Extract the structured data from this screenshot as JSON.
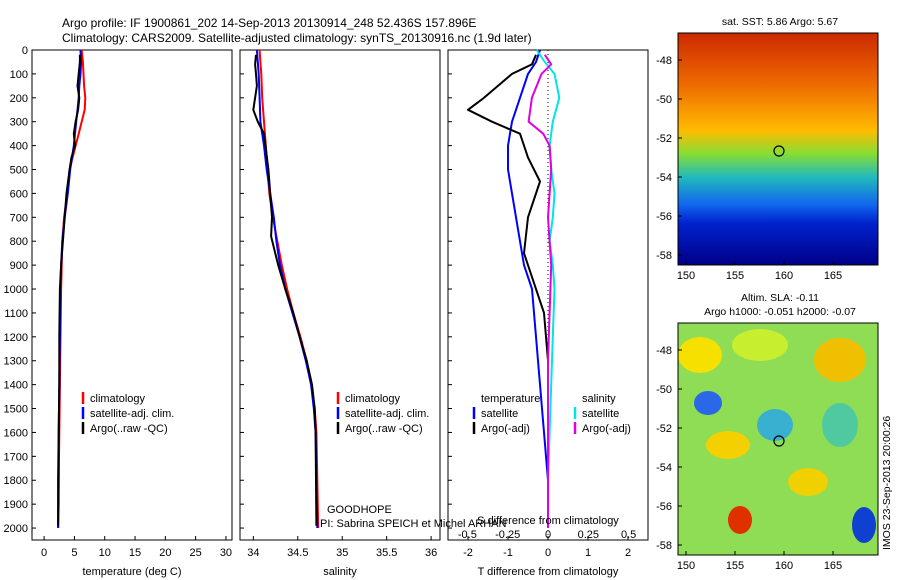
{
  "header": {
    "line1": "Argo profile: IF 1900861_202 14-Sep-2013 20130914_248 52.436S 157.896E",
    "line2": "Climatology: CARS2009. Satellite-adjusted climatology: synTS_20130916.nc (1.9d later)"
  },
  "colors": {
    "climatology": "#ff0000",
    "satellite_adj": "#0000ff",
    "argo": "#000000",
    "salinity_satellite": "#00e5e5",
    "salinity_argo": "#e000e0"
  },
  "depth_ticks": [
    "0",
    "100",
    "200",
    "300",
    "400",
    "500",
    "600",
    "700",
    "800",
    "900",
    "1000",
    "1100",
    "1200",
    "1300",
    "1400",
    "1500",
    "1600",
    "1700",
    "1800",
    "1900",
    "2000"
  ],
  "legend_profile": [
    "climatology",
    "satellite-adj. clim.",
    "Argo(..raw -QC)"
  ],
  "panel_annotation": {
    "line1": "GOODHOPE",
    "line2": "PI: Sabrina SPEICH et Michel ARHAN"
  },
  "diff_legend": {
    "temp_title": "temperature",
    "temp_items": [
      "satellite",
      "Argo(-adj)"
    ],
    "sal_title": "salinity",
    "sal_items": [
      "satellite",
      "Argo(-adj)"
    ]
  },
  "diff_axes": {
    "s_label": "S difference from climatology",
    "s_ticks": [
      "-0.5",
      "-0.25",
      "0",
      "0.25",
      "0.5"
    ],
    "t_label": "T difference from climatology",
    "t_ticks": [
      "-2",
      "-1",
      "0",
      "1",
      "2"
    ]
  },
  "maps": {
    "sst_title": "sat. SST: 5.86 Argo: 5.67",
    "sla_title1": "Altim. SLA: -0.11",
    "sla_title2": "Argo h1000: -0.051 h2000: -0.07",
    "lat_ticks": [
      "-48",
      "-50",
      "-52",
      "-54",
      "-56",
      "-58"
    ],
    "lon_ticks": [
      "150",
      "155",
      "160",
      "165"
    ],
    "credit": "IMOS 23-Sep-2013 20:00:26"
  },
  "chart_data": [
    {
      "type": "line",
      "name": "temperature profile",
      "xlabel": "temperature (deg C)",
      "ylabel": "",
      "xlim": [
        -2,
        31
      ],
      "ylim": [
        2050,
        0
      ],
      "xticks": [
        "0",
        "5",
        "10",
        "15",
        "20",
        "25",
        "30"
      ],
      "series": [
        {
          "name": "climatology",
          "color": "#ff0000",
          "x": [
            6.2,
            6.4,
            6.5,
            6.6,
            6.8,
            6.7,
            6.2,
            5.7,
            5.2,
            4.7,
            4.2,
            3.8,
            3.3,
            3.0,
            2.9,
            2.8,
            2.7,
            2.6,
            2.5,
            2.4,
            2.4,
            2.3
          ],
          "y": [
            0,
            50,
            100,
            150,
            200,
            250,
            300,
            350,
            400,
            450,
            500,
            600,
            700,
            800,
            900,
            1000,
            1200,
            1400,
            1600,
            1800,
            1900,
            2000
          ]
        },
        {
          "name": "satellite-adj. clim.",
          "color": "#0000ff",
          "x": [
            6.0,
            6.1,
            6.0,
            5.8,
            5.7,
            5.5,
            5.3,
            5.1,
            4.9,
            4.6,
            4.3,
            3.9,
            3.4,
            3.0,
            2.8,
            2.7,
            2.6,
            2.5,
            2.4,
            2.4,
            2.3
          ],
          "y": [
            0,
            50,
            100,
            150,
            200,
            250,
            300,
            350,
            400,
            450,
            500,
            600,
            700,
            800,
            900,
            1000,
            1200,
            1400,
            1600,
            1800,
            2000
          ]
        },
        {
          "name": "Argo(..raw -QC)",
          "color": "#000000",
          "x": [
            5.9,
            5.9,
            5.7,
            5.5,
            5.8,
            5.6,
            5.2,
            4.9,
            5.1,
            4.5,
            4.2,
            3.7,
            3.4,
            3.1,
            2.8,
            2.6,
            2.5,
            2.5,
            2.4,
            2.3,
            2.3
          ],
          "y": [
            20,
            50,
            100,
            150,
            200,
            250,
            300,
            350,
            400,
            450,
            500,
            600,
            700,
            800,
            900,
            1000,
            1200,
            1400,
            1600,
            1800,
            1990
          ]
        }
      ]
    },
    {
      "type": "line",
      "name": "salinity profile",
      "xlabel": "salinity",
      "ylabel": "",
      "xlim": [
        33.85,
        36.1
      ],
      "ylim": [
        2050,
        0
      ],
      "xticks": [
        "34",
        "34.5",
        "35",
        "35.5",
        "36"
      ],
      "series": [
        {
          "name": "climatology",
          "color": "#ff0000",
          "x": [
            34.07,
            34.08,
            34.09,
            34.1,
            34.12,
            34.14,
            34.16,
            34.18,
            34.22,
            34.27,
            34.32,
            34.38,
            34.45,
            34.53,
            34.6,
            34.65,
            34.69,
            34.71,
            34.72,
            34.73
          ],
          "y": [
            0,
            50,
            100,
            200,
            300,
            400,
            500,
            600,
            700,
            800,
            900,
            1000,
            1100,
            1200,
            1300,
            1400,
            1500,
            1600,
            1800,
            2000
          ]
        },
        {
          "name": "satellite-adj. clim.",
          "color": "#0000ff",
          "x": [
            34.04,
            34.05,
            34.06,
            34.07,
            34.08,
            34.12,
            34.15,
            34.19,
            34.23,
            34.26,
            34.3,
            34.36,
            34.44,
            34.52,
            34.59,
            34.65,
            34.68,
            34.7,
            34.71,
            34.72
          ],
          "y": [
            0,
            50,
            100,
            200,
            300,
            400,
            500,
            600,
            700,
            800,
            900,
            1000,
            1100,
            1200,
            1300,
            1400,
            1500,
            1600,
            1800,
            2000
          ]
        },
        {
          "name": "Argo(..raw -QC)",
          "color": "#000000",
          "x": [
            34.03,
            34.02,
            34.03,
            34.04,
            34.0,
            34.05,
            34.12,
            34.17,
            34.21,
            34.2,
            34.28,
            34.36,
            34.45,
            34.52,
            34.6,
            34.66,
            34.69,
            34.7,
            34.71
          ],
          "y": [
            20,
            60,
            100,
            150,
            250,
            300,
            350,
            500,
            700,
            780,
            900,
            1000,
            1100,
            1200,
            1300,
            1400,
            1500,
            1600,
            1990
          ]
        }
      ]
    },
    {
      "type": "line",
      "name": "difference from climatology",
      "xlabel": "T difference from climatology",
      "ylabel": "",
      "xlim": [
        -2.5,
        2.5
      ],
      "ylim": [
        2050,
        0
      ],
      "series": [
        {
          "name": "temperature satellite",
          "color": "#0000ff",
          "x": [
            -0.2,
            -0.3,
            -0.5,
            -0.7,
            -0.9,
            -1.0,
            -1.0,
            -0.9,
            -0.8,
            -0.7,
            -0.6,
            -0.4,
            -0.3,
            -0.2,
            -0.1,
            0.0,
            0.0
          ],
          "y": [
            0,
            50,
            100,
            200,
            300,
            400,
            500,
            600,
            700,
            800,
            900,
            1000,
            1200,
            1400,
            1600,
            1800,
            2000
          ]
        },
        {
          "name": "temperature Argo(-adj)",
          "color": "#000000",
          "x": [
            -0.3,
            -0.4,
            -0.9,
            -1.6,
            -2.0,
            -1.4,
            -0.7,
            -0.5,
            -0.2,
            -0.5,
            -0.6,
            -0.4,
            -0.1,
            0.0,
            0.0,
            0.0,
            0.0
          ],
          "y": [
            20,
            60,
            100,
            200,
            250,
            300,
            350,
            450,
            550,
            700,
            850,
            950,
            1100,
            1300,
            1500,
            1800,
            2000
          ]
        }
      ]
    },
    {
      "type": "line",
      "name": "salinity difference",
      "xlabel": "S difference from climatology",
      "ylabel": "",
      "xlim": [
        -0.62,
        0.62
      ],
      "ylim": [
        2050,
        0
      ],
      "series": [
        {
          "name": "salinity satellite",
          "color": "#00e5e5",
          "x": [
            -0.07,
            -0.02,
            0.04,
            0.07,
            0.03,
            0.01,
            0.02,
            0.04,
            0.03,
            0.01,
            0.03,
            0.04,
            0.03,
            0.02,
            0.01,
            0.0,
            0.0
          ],
          "y": [
            0,
            50,
            100,
            200,
            300,
            400,
            500,
            600,
            700,
            800,
            900,
            1000,
            1200,
            1400,
            1600,
            1800,
            2000
          ]
        },
        {
          "name": "salinity Argo(-adj)",
          "color": "#e000e0",
          "x": [
            -0.02,
            0.02,
            -0.04,
            -0.1,
            -0.12,
            -0.03,
            0.01,
            0.02,
            0.0,
            0.02,
            0.01,
            0.0,
            0.0,
            0.0,
            0.0
          ],
          "y": [
            20,
            60,
            100,
            200,
            300,
            350,
            400,
            500,
            700,
            900,
            1100,
            1300,
            1500,
            1800,
            2000
          ]
        }
      ]
    }
  ]
}
